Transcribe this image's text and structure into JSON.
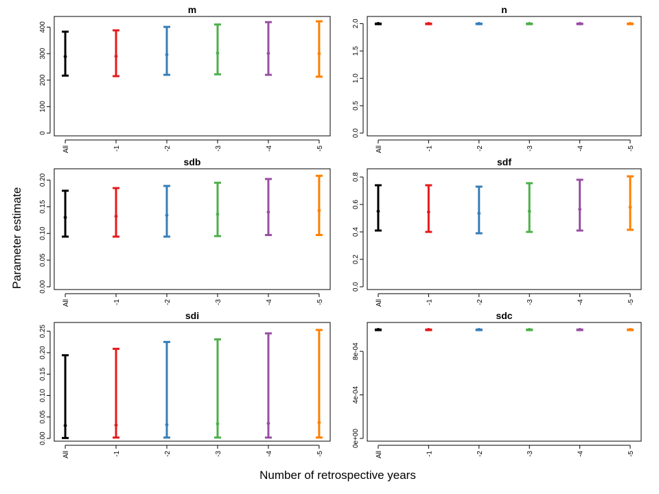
{
  "figure": {
    "ylabel": "Parameter estimate",
    "xlabel": "Number of retrospective years"
  },
  "chart_data": [
    {
      "type": "errorbar",
      "title": "m",
      "categories": [
        "All",
        "-1",
        "-2",
        "-3",
        "-4",
        "-5"
      ],
      "colors": [
        "#000000",
        "#e41a1c",
        "#377eb8",
        "#4daf4a",
        "#984ea3",
        "#ff7f00"
      ],
      "estimate": [
        289,
        290,
        296,
        302,
        301,
        300
      ],
      "lower": [
        217,
        215,
        220,
        222,
        220,
        213
      ],
      "upper": [
        383,
        388,
        401,
        410,
        419,
        422
      ],
      "yticks": [
        "0",
        "100",
        "200",
        "300",
        "400"
      ],
      "ytick_values": [
        0,
        100,
        200,
        300,
        400
      ],
      "ylim": [
        0,
        430
      ],
      "xlabel": "",
      "ylabel": ""
    },
    {
      "type": "errorbar",
      "title": "n",
      "categories": [
        "All",
        "-1",
        "-2",
        "-3",
        "-4",
        "-5"
      ],
      "colors": [
        "#000000",
        "#e41a1c",
        "#377eb8",
        "#4daf4a",
        "#984ea3",
        "#ff7f00"
      ],
      "estimate": [
        2.0,
        2.0,
        2.0,
        2.0,
        2.0,
        2.0
      ],
      "lower": [
        1.99,
        1.99,
        1.99,
        1.99,
        1.99,
        1.99
      ],
      "upper": [
        2.0,
        2.0,
        2.0,
        2.0,
        2.0,
        2.0
      ],
      "yticks": [
        "0.0",
        "0.5",
        "1.0",
        "1.5",
        "2.0"
      ],
      "ytick_values": [
        0.0,
        0.5,
        1.0,
        1.5,
        2.0
      ],
      "ylim": [
        0,
        2.08
      ],
      "xlabel": "",
      "ylabel": ""
    },
    {
      "type": "errorbar",
      "title": "sdb",
      "categories": [
        "All",
        "-1",
        "-2",
        "-3",
        "-4",
        "-5"
      ],
      "colors": [
        "#000000",
        "#e41a1c",
        "#377eb8",
        "#4daf4a",
        "#984ea3",
        "#ff7f00"
      ],
      "estimate": [
        0.13,
        0.132,
        0.134,
        0.136,
        0.14,
        0.143
      ],
      "lower": [
        0.094,
        0.094,
        0.094,
        0.095,
        0.097,
        0.097
      ],
      "upper": [
        0.18,
        0.185,
        0.189,
        0.195,
        0.202,
        0.208
      ],
      "yticks": [
        "0.00",
        "0.05",
        "0.10",
        "0.15",
        "0.20"
      ],
      "ytick_values": [
        0.0,
        0.05,
        0.1,
        0.15,
        0.2
      ],
      "ylim": [
        0,
        0.216
      ],
      "xlabel": "",
      "ylabel": ""
    },
    {
      "type": "errorbar",
      "title": "sdf",
      "categories": [
        "All",
        "-1",
        "-2",
        "-3",
        "-4",
        "-5"
      ],
      "colors": [
        "#000000",
        "#e41a1c",
        "#377eb8",
        "#4daf4a",
        "#984ea3",
        "#ff7f00"
      ],
      "estimate": [
        0.55,
        0.545,
        0.535,
        0.55,
        0.565,
        0.58
      ],
      "lower": [
        0.41,
        0.4,
        0.39,
        0.4,
        0.41,
        0.415
      ],
      "upper": [
        0.74,
        0.74,
        0.73,
        0.755,
        0.78,
        0.805
      ],
      "yticks": [
        "0.0",
        "0.2",
        "0.4",
        "0.6",
        "0.8"
      ],
      "ytick_values": [
        0.0,
        0.2,
        0.4,
        0.6,
        0.8
      ],
      "ylim": [
        0,
        0.84
      ],
      "xlabel": "",
      "ylabel": ""
    },
    {
      "type": "errorbar",
      "title": "sdi",
      "categories": [
        "All",
        "-1",
        "-2",
        "-3",
        "-4",
        "-5"
      ],
      "colors": [
        "#000000",
        "#e41a1c",
        "#377eb8",
        "#4daf4a",
        "#984ea3",
        "#ff7f00"
      ],
      "estimate": [
        0.03,
        0.031,
        0.032,
        0.034,
        0.035,
        0.037
      ],
      "lower": [
        0.001,
        0.002,
        0.002,
        0.002,
        0.002,
        0.002
      ],
      "upper": [
        0.194,
        0.209,
        0.225,
        0.231,
        0.245,
        0.253
      ],
      "yticks": [
        "0.00",
        "0.05",
        "0.10",
        "0.15",
        "0.20",
        "0.25"
      ],
      "ytick_values": [
        0.0,
        0.05,
        0.1,
        0.15,
        0.2,
        0.25
      ],
      "ylim": [
        0,
        0.264
      ],
      "xlabel": "",
      "ylabel": ""
    },
    {
      "type": "errorbar",
      "title": "sdc",
      "categories": [
        "All",
        "-1",
        "-2",
        "-3",
        "-4",
        "-5"
      ],
      "colors": [
        "#000000",
        "#e41a1c",
        "#377eb8",
        "#4daf4a",
        "#984ea3",
        "#ff7f00"
      ],
      "estimate": [
        0.001,
        0.001,
        0.001,
        0.001,
        0.001,
        0.001
      ],
      "lower": [
        0.000995,
        0.000995,
        0.000995,
        0.000995,
        0.000995,
        0.000995
      ],
      "upper": [
        0.001,
        0.001,
        0.001,
        0.001,
        0.001,
        0.001
      ],
      "yticks": [
        "0e+00",
        "4e-04",
        "8e-04"
      ],
      "ytick_values": [
        0.0,
        0.0004,
        0.0008
      ],
      "ylim": [
        0,
        0.00104
      ],
      "xlabel": "",
      "ylabel": ""
    }
  ]
}
